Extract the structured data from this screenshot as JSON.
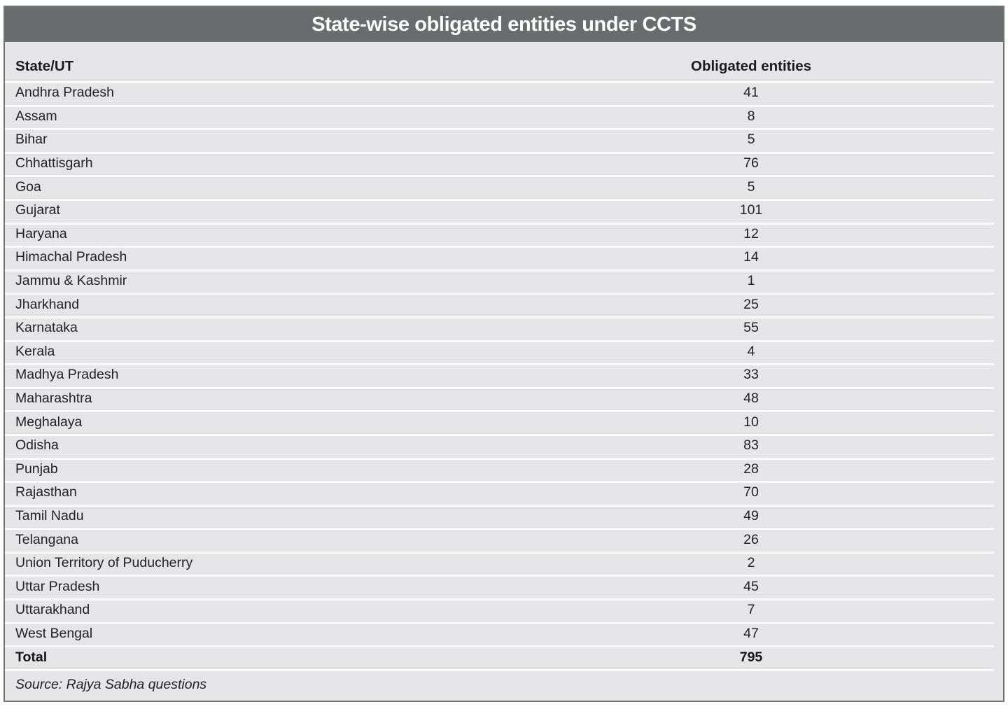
{
  "table": {
    "title": "State-wise obligated entities under CCTS",
    "columns": [
      "State/UT",
      "Obligated entities"
    ],
    "rows": [
      {
        "state": "Andhra Pradesh",
        "value": "41"
      },
      {
        "state": "Assam",
        "value": "8"
      },
      {
        "state": "Bihar",
        "value": "5"
      },
      {
        "state": "Chhattisgarh",
        "value": "76"
      },
      {
        "state": "Goa",
        "value": "5"
      },
      {
        "state": "Gujarat",
        "value": "101"
      },
      {
        "state": "Haryana",
        "value": "12"
      },
      {
        "state": "Himachal Pradesh",
        "value": "14"
      },
      {
        "state": "Jammu & Kashmir",
        "value": "1"
      },
      {
        "state": "Jharkhand",
        "value": "25"
      },
      {
        "state": "Karnataka",
        "value": "55"
      },
      {
        "state": "Kerala",
        "value": "4"
      },
      {
        "state": "Madhya Pradesh",
        "value": "33"
      },
      {
        "state": "Maharashtra",
        "value": "48"
      },
      {
        "state": "Meghalaya",
        "value": "10"
      },
      {
        "state": "Odisha",
        "value": "83"
      },
      {
        "state": "Punjab",
        "value": "28"
      },
      {
        "state": "Rajasthan",
        "value": "70"
      },
      {
        "state": "Tamil Nadu",
        "value": "49"
      },
      {
        "state": "Telangana",
        "value": "26"
      },
      {
        "state": "Union Territory of Puducherry",
        "value": "2"
      },
      {
        "state": "Uttar Pradesh",
        "value": "45"
      },
      {
        "state": "Uttarakhand",
        "value": "7"
      },
      {
        "state": "West Bengal",
        "value": "47"
      }
    ],
    "total_label": "Total",
    "total_value": "795",
    "source": "Source: Rajya Sabha questions"
  },
  "colors": {
    "title_bar_bg": "#696b6d",
    "title_text": "#ffffff",
    "row_bg": "#e5e5e7",
    "separator": "#fafafb",
    "border": "#737477",
    "text": "#222224"
  },
  "chart_data": {
    "type": "table",
    "title": "State-wise obligated entities under CCTS",
    "columns": [
      "State/UT",
      "Obligated entities"
    ],
    "categories": [
      "Andhra Pradesh",
      "Assam",
      "Bihar",
      "Chhattisgarh",
      "Goa",
      "Gujarat",
      "Haryana",
      "Himachal Pradesh",
      "Jammu & Kashmir",
      "Jharkhand",
      "Karnataka",
      "Kerala",
      "Madhya Pradesh",
      "Maharashtra",
      "Meghalaya",
      "Odisha",
      "Punjab",
      "Rajasthan",
      "Tamil Nadu",
      "Telangana",
      "Union Territory of Puducherry",
      "Uttar Pradesh",
      "Uttarakhand",
      "West Bengal"
    ],
    "values": [
      41,
      8,
      5,
      76,
      5,
      101,
      12,
      14,
      1,
      25,
      55,
      4,
      33,
      48,
      10,
      83,
      28,
      70,
      49,
      26,
      2,
      45,
      7,
      47
    ],
    "total": 795,
    "source": "Source: Rajya Sabha questions"
  }
}
